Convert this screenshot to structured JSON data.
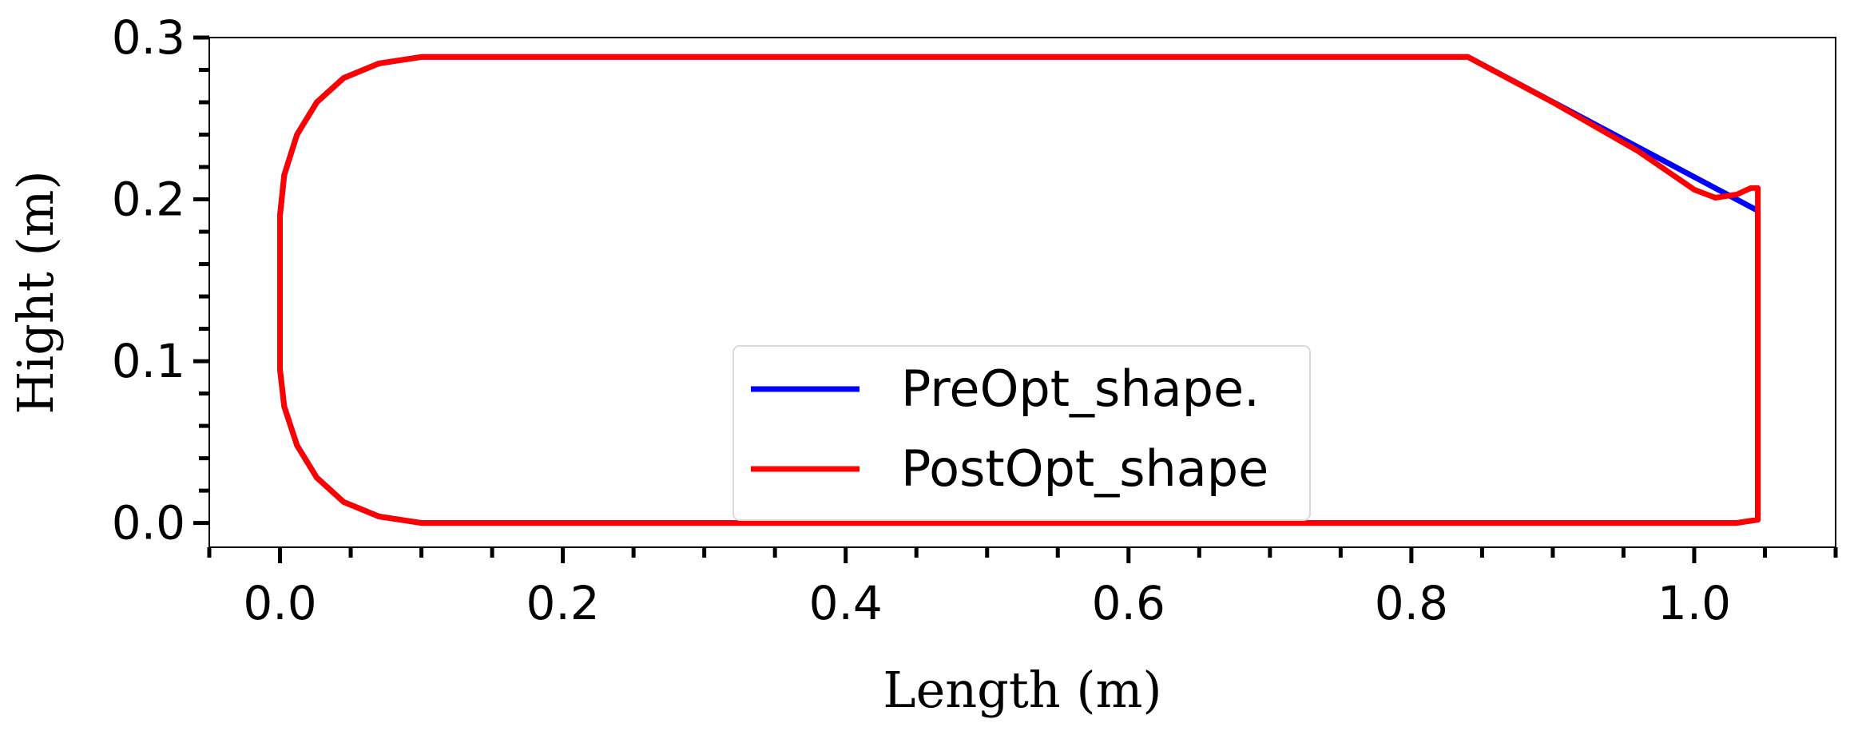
{
  "chart_data": {
    "type": "line",
    "title": "",
    "xlabel": "Length (m)",
    "ylabel": "Hight (m)",
    "xlim": [
      -0.05,
      1.1
    ],
    "ylim": [
      -0.015,
      0.3
    ],
    "x_ticks": [
      {
        "value": 0.0,
        "label": "0.0"
      },
      {
        "value": 0.2,
        "label": "0.2"
      },
      {
        "value": 0.4,
        "label": "0.4"
      },
      {
        "value": 0.6,
        "label": "0.6"
      },
      {
        "value": 0.8,
        "label": "0.8"
      },
      {
        "value": 1.0,
        "label": "1.0"
      }
    ],
    "y_ticks": [
      {
        "value": 0.0,
        "label": "0.0"
      },
      {
        "value": 0.1,
        "label": "0.1"
      },
      {
        "value": 0.2,
        "label": "0.2"
      },
      {
        "value": 0.3,
        "label": "0.3"
      }
    ],
    "x_minor_step": 0.05,
    "y_minor_step": 0.02,
    "grid": false,
    "legend": {
      "placement": "lower-center"
    },
    "series": [
      {
        "name": "PreOpt_shape.",
        "color": "#0000ff",
        "x": [
          0.0,
          0.0,
          0.003,
          0.012,
          0.026,
          0.045,
          0.07,
          0.1,
          0.84,
          1.045,
          1.045,
          1.03,
          0.1,
          0.07,
          0.045,
          0.026,
          0.012,
          0.003,
          0.0,
          0.0
        ],
        "y": [
          0.12,
          0.19,
          0.215,
          0.24,
          0.26,
          0.275,
          0.284,
          0.288,
          0.288,
          0.193,
          0.002,
          0.0,
          0.0,
          0.004,
          0.013,
          0.028,
          0.048,
          0.072,
          0.095,
          0.12
        ]
      },
      {
        "name": "PostOpt_shape",
        "color": "#ff0000",
        "x": [
          0.0,
          0.0,
          0.003,
          0.012,
          0.026,
          0.045,
          0.07,
          0.1,
          0.84,
          0.9,
          0.96,
          1.0,
          1.015,
          1.03,
          1.04,
          1.045,
          1.045,
          1.03,
          0.1,
          0.07,
          0.045,
          0.026,
          0.012,
          0.003,
          0.0,
          0.0
        ],
        "y": [
          0.12,
          0.19,
          0.215,
          0.24,
          0.26,
          0.275,
          0.284,
          0.288,
          0.288,
          0.26,
          0.23,
          0.206,
          0.201,
          0.203,
          0.207,
          0.207,
          0.002,
          0.0,
          0.0,
          0.004,
          0.013,
          0.028,
          0.048,
          0.072,
          0.095,
          0.12
        ]
      }
    ]
  }
}
